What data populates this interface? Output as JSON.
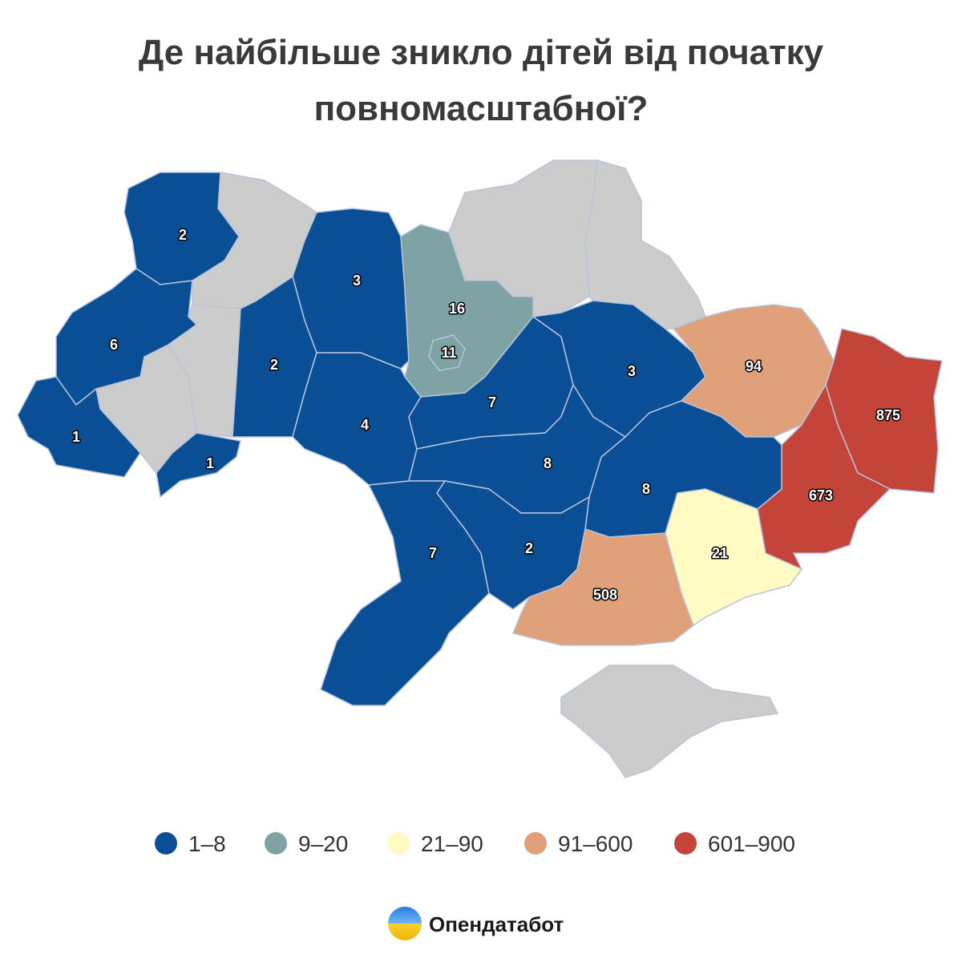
{
  "title": [
    "Де найбільше зникло дітей від початку",
    "повномасштабної?"
  ],
  "legend": [
    {
      "label": "1–8",
      "color": "#0a4f96"
    },
    {
      "label": "9–20",
      "color": "#7fa3a4"
    },
    {
      "label": "21–90",
      "color": "#fffbc2"
    },
    {
      "label": "91–600",
      "color": "#e0a07a"
    },
    {
      "label": "601–900",
      "color": "#c4443a"
    }
  ],
  "regions": [
    {
      "value": 2,
      "color": "#0a4f96"
    },
    {
      "value": 6,
      "color": "#0a4f96"
    },
    {
      "value": 1,
      "color": "#0a4f96"
    },
    {
      "value": 1,
      "color": "#0a4f96"
    },
    {
      "value": 3,
      "color": "#0a4f96"
    },
    {
      "value": 2,
      "color": "#0a4f96"
    },
    {
      "value": 4,
      "color": "#0a4f96"
    },
    {
      "value": 16,
      "color": "#7fa3a4"
    },
    {
      "value": 11,
      "color": "#7fa3a4"
    },
    {
      "value": 7,
      "color": "#0a4f96"
    },
    {
      "value": 3,
      "color": "#0a4f96"
    },
    {
      "value": 94,
      "color": "#e0a07a"
    },
    {
      "value": 875,
      "color": "#c4443a"
    },
    {
      "value": 673,
      "color": "#c4443a"
    },
    {
      "value": 8,
      "color": "#0a4f96"
    },
    {
      "value": 8,
      "color": "#0a4f96"
    },
    {
      "value": 7,
      "color": "#0a4f96"
    },
    {
      "value": 2,
      "color": "#0a4f96"
    },
    {
      "value": 508,
      "color": "#e0a07a"
    },
    {
      "value": 21,
      "color": "#fffbc2"
    }
  ],
  "brand": "Опендатабот"
}
